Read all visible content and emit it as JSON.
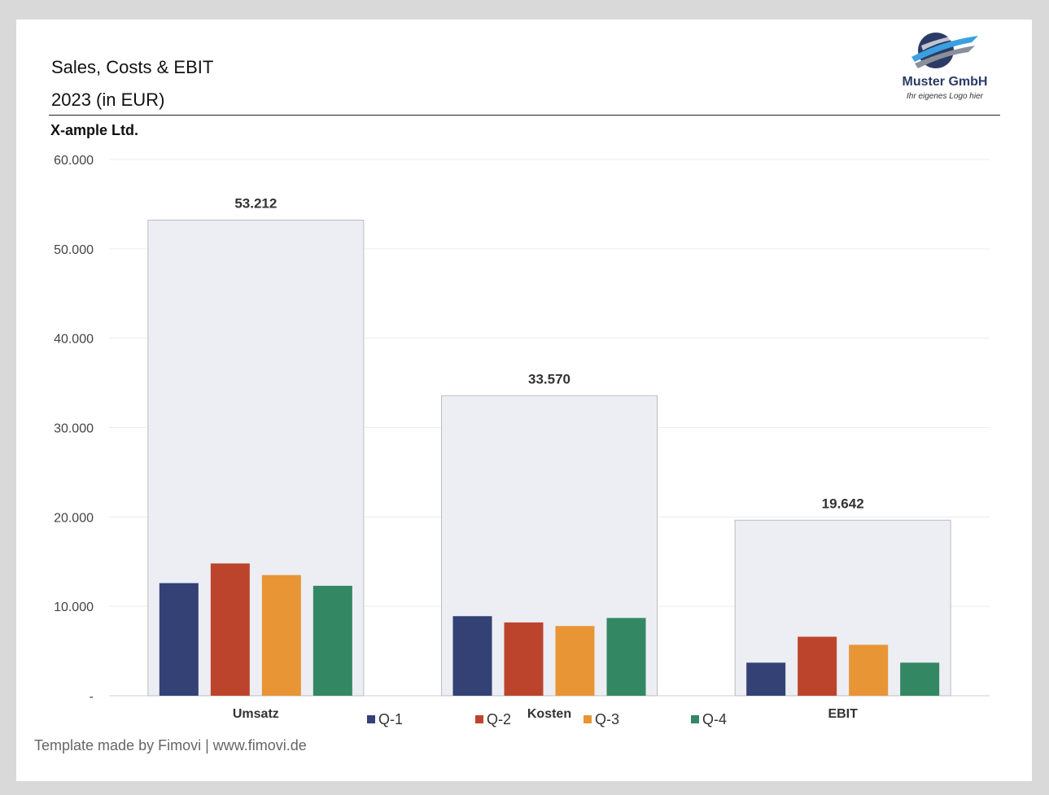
{
  "header": {
    "title_line1": "Sales, Costs & EBIT",
    "title_line2": "2023 (in EUR)",
    "company": "X-ample Ltd."
  },
  "logo": {
    "name": "Muster GmbH",
    "tagline": "Ihr eigenes Logo hier",
    "icon": "globe-swoosh-icon"
  },
  "footer": {
    "text": "Template made by Fimovi  |  www.fimovi.de"
  },
  "colors": {
    "Q-1": "#334175",
    "Q-2": "#bc442c",
    "Q-3": "#e79535",
    "Q-4": "#338762",
    "total_fill": "#eceef3",
    "total_stroke": "#bdbdbd"
  },
  "chart_data": {
    "type": "bar",
    "categories": [
      "Umsatz",
      "Kosten",
      "EBIT"
    ],
    "totals": [
      53212,
      33570,
      19642
    ],
    "total_labels": [
      "53.212",
      "33.570",
      "19.642"
    ],
    "series": [
      {
        "name": "Q-1",
        "values": [
          12600,
          8900,
          3700
        ]
      },
      {
        "name": "Q-2",
        "values": [
          14800,
          8200,
          6600
        ]
      },
      {
        "name": "Q-3",
        "values": [
          13500,
          7800,
          5700
        ]
      },
      {
        "name": "Q-4",
        "values": [
          12300,
          8700,
          3700
        ]
      }
    ],
    "ylim": [
      0,
      60000
    ],
    "yticks": [
      0,
      10000,
      20000,
      30000,
      40000,
      50000,
      60000
    ],
    "ytick_labels": [
      "-",
      "10.000",
      "20.000",
      "30.000",
      "40.000",
      "50.000",
      "60.000"
    ],
    "grid": true,
    "legend": "bottom"
  }
}
